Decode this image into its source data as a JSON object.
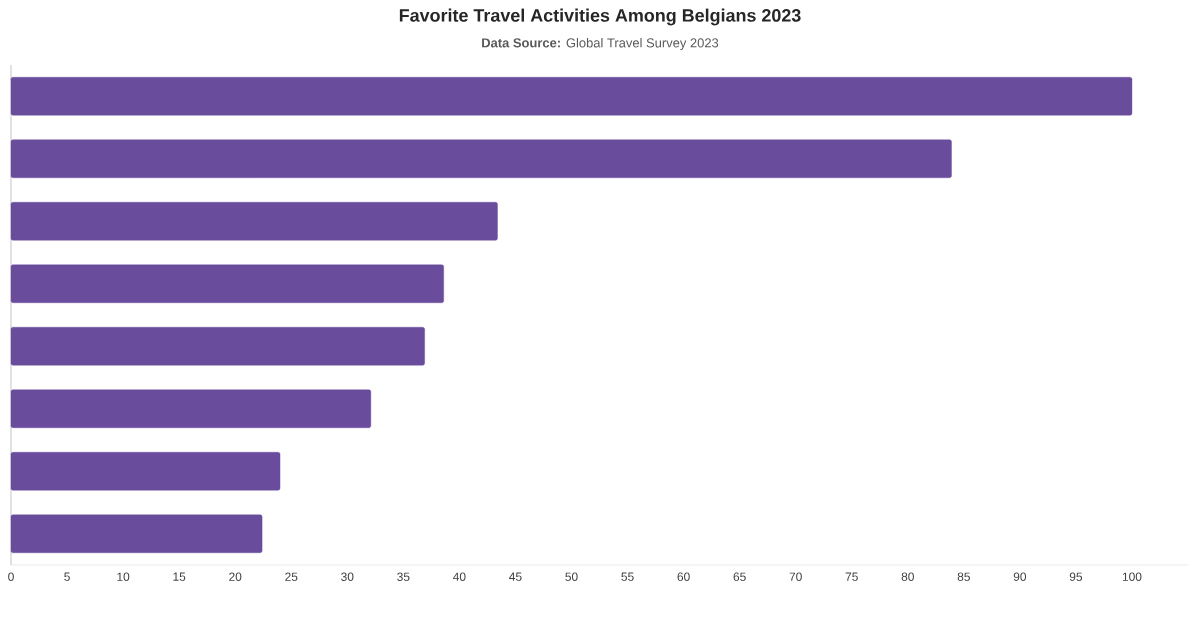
{
  "chart_data": {
    "type": "bar",
    "orientation": "horizontal",
    "title": "Favorite Travel Activities Among Belgians 2023",
    "subtitle": "**Data Source:** Global Travel Survey 2023",
    "categories": [
      null,
      null,
      null,
      null,
      null,
      null,
      null,
      null
    ],
    "values": [
      100,
      83.9,
      43.4,
      38.6,
      36.9,
      32.1,
      24.0,
      22.4
    ],
    "color": "#6a4c9c",
    "xlim": [
      0,
      105
    ],
    "xticks": [
      0,
      5,
      10,
      15,
      20,
      25,
      30,
      35,
      40,
      45,
      50,
      55,
      60,
      65,
      70,
      75,
      80,
      85,
      90,
      95,
      100
    ],
    "grid": false
  }
}
